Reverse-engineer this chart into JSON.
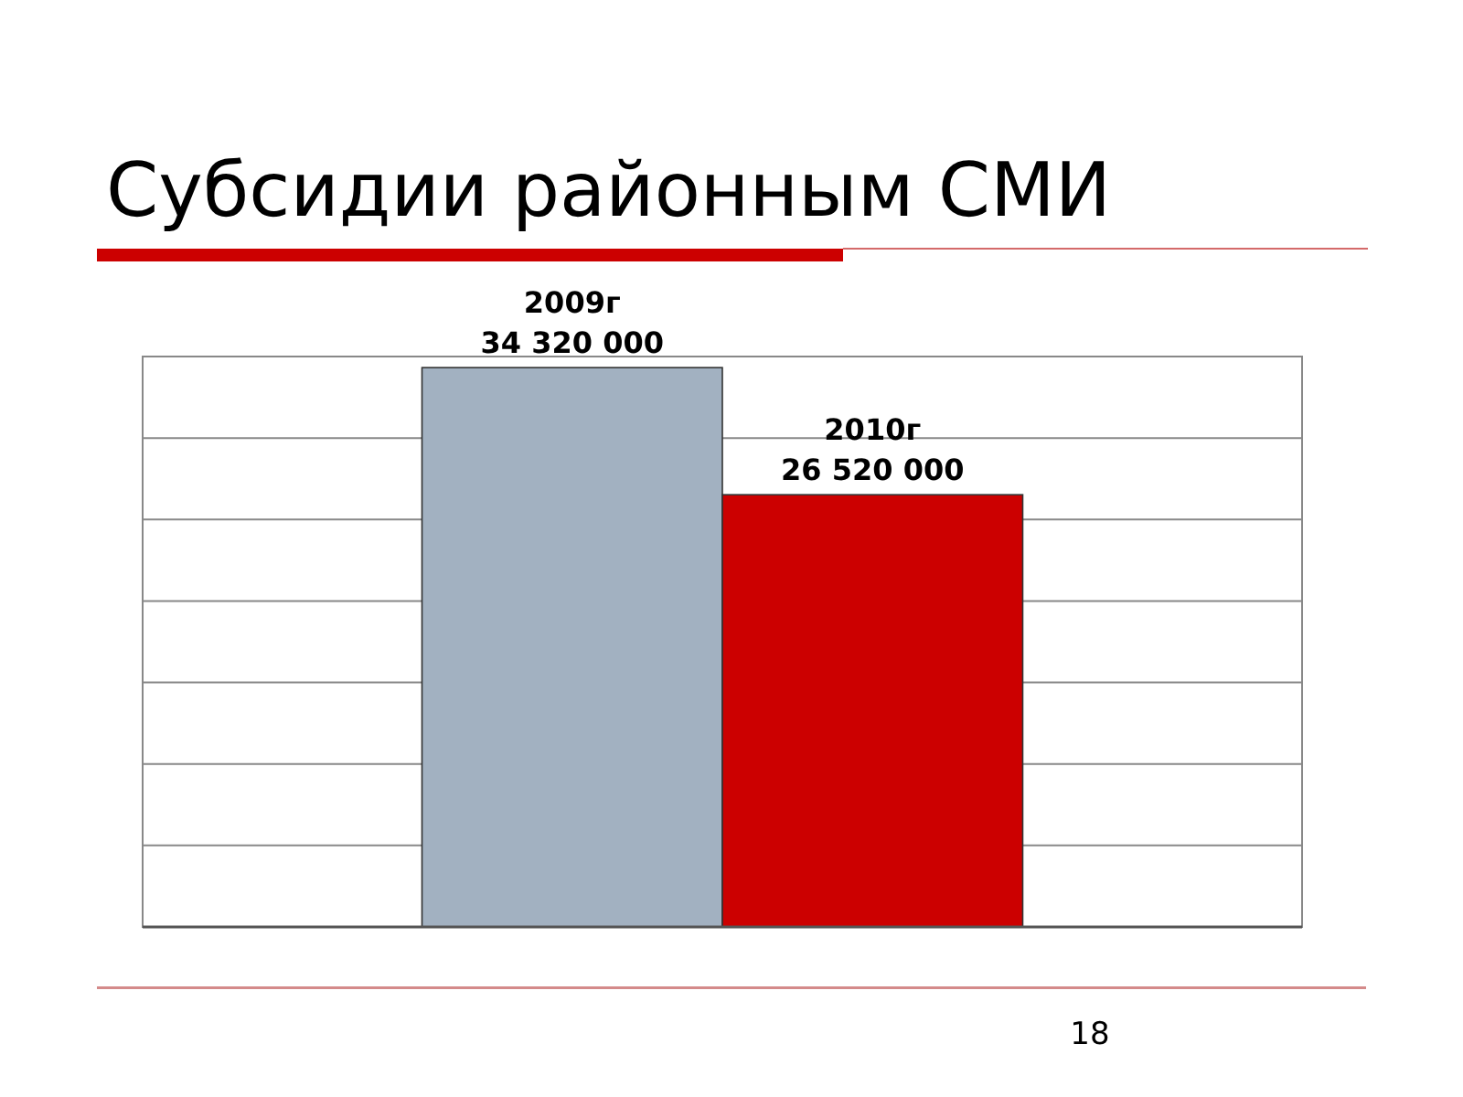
{
  "chart_data": {
    "type": "bar",
    "title": "Субсидии районным СМИ",
    "categories": [
      "2009г",
      "2010г"
    ],
    "values": [
      34320000,
      26520000
    ],
    "colors": [
      "#a2b1c1",
      "#cc0000"
    ],
    "value_labels": [
      "34 320 000",
      "26 520 000"
    ],
    "ylim": [
      0,
      35000000
    ],
    "yticks": [
      {
        "value": 0,
        "label": null
      },
      {
        "value": 5000000,
        "label": null
      },
      {
        "value": 10000000,
        "label": null
      },
      {
        "value": 15000000,
        "label": null
      },
      {
        "value": 20000000,
        "label": null
      },
      {
        "value": 25000000,
        "label": null
      },
      {
        "value": 30000000,
        "label": null
      },
      {
        "value": 35000000,
        "label": null
      }
    ],
    "grid": "y",
    "tick_labels": false,
    "annotations": [
      "18"
    ]
  }
}
